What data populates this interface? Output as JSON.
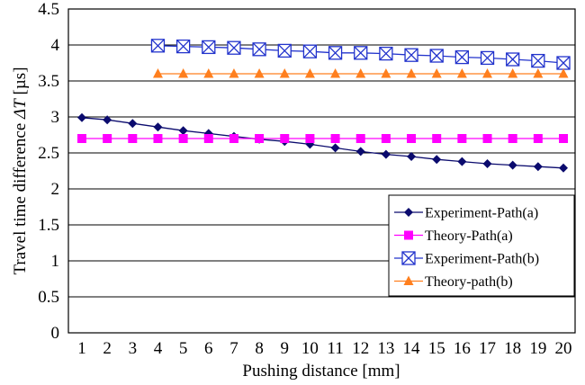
{
  "chart_data": {
    "type": "line",
    "xlabel": "Pushing distance [mm]",
    "ylabel_prefix": "Travel time difference ",
    "ylabel_symbol": "ΔT",
    "ylabel_suffix": " [µs]",
    "ylim": [
      0,
      4.5
    ],
    "xlim": [
      1,
      20
    ],
    "yticks": [
      "0",
      "0.5",
      "1",
      "1.5",
      "2",
      "2.5",
      "3",
      "3.5",
      "4",
      "4.5"
    ],
    "xticks": [
      "1",
      "2",
      "3",
      "4",
      "5",
      "6",
      "7",
      "8",
      "9",
      "10",
      "11",
      "12",
      "13",
      "14",
      "15",
      "16",
      "17",
      "18",
      "19",
      "20"
    ],
    "grid": "horizontal",
    "legend_position": "lower-right",
    "series": [
      {
        "name": "Experiment-Path(a)",
        "color": "#0b0b6e",
        "marker": "diamond",
        "x": [
          1,
          2,
          3,
          4,
          5,
          6,
          7,
          8,
          9,
          10,
          11,
          12,
          13,
          14,
          15,
          16,
          17,
          18,
          19,
          20
        ],
        "y": [
          2.99,
          2.96,
          2.91,
          2.86,
          2.81,
          2.77,
          2.73,
          2.69,
          2.66,
          2.62,
          2.57,
          2.52,
          2.48,
          2.45,
          2.41,
          2.38,
          2.35,
          2.33,
          2.31,
          2.29
        ]
      },
      {
        "name": "Theory-Path(a)",
        "color": "#ff00ff",
        "marker": "square",
        "x": [
          1,
          2,
          3,
          4,
          5,
          6,
          7,
          8,
          9,
          10,
          11,
          12,
          13,
          14,
          15,
          16,
          17,
          18,
          19,
          20
        ],
        "y": [
          2.7,
          2.7,
          2.7,
          2.7,
          2.7,
          2.7,
          2.7,
          2.7,
          2.7,
          2.7,
          2.7,
          2.7,
          2.7,
          2.7,
          2.7,
          2.7,
          2.7,
          2.7,
          2.7,
          2.7
        ]
      },
      {
        "name": "Experiment-Path(b)",
        "color": "#2233cc",
        "marker": "boxed-x",
        "x": [
          4,
          5,
          6,
          7,
          8,
          9,
          10,
          11,
          12,
          13,
          14,
          15,
          16,
          17,
          18,
          19,
          20
        ],
        "y": [
          3.99,
          3.98,
          3.97,
          3.96,
          3.94,
          3.92,
          3.91,
          3.89,
          3.89,
          3.88,
          3.86,
          3.85,
          3.83,
          3.82,
          3.8,
          3.78,
          3.75
        ]
      },
      {
        "name": "Theory-path(b)",
        "color": "#ff7f1e",
        "marker": "triangle",
        "x": [
          4,
          5,
          6,
          7,
          8,
          9,
          10,
          11,
          12,
          13,
          14,
          15,
          16,
          17,
          18,
          19,
          20
        ],
        "y": [
          3.6,
          3.6,
          3.6,
          3.6,
          3.6,
          3.6,
          3.6,
          3.6,
          3.6,
          3.6,
          3.6,
          3.6,
          3.6,
          3.6,
          3.6,
          3.6,
          3.6
        ]
      }
    ]
  }
}
